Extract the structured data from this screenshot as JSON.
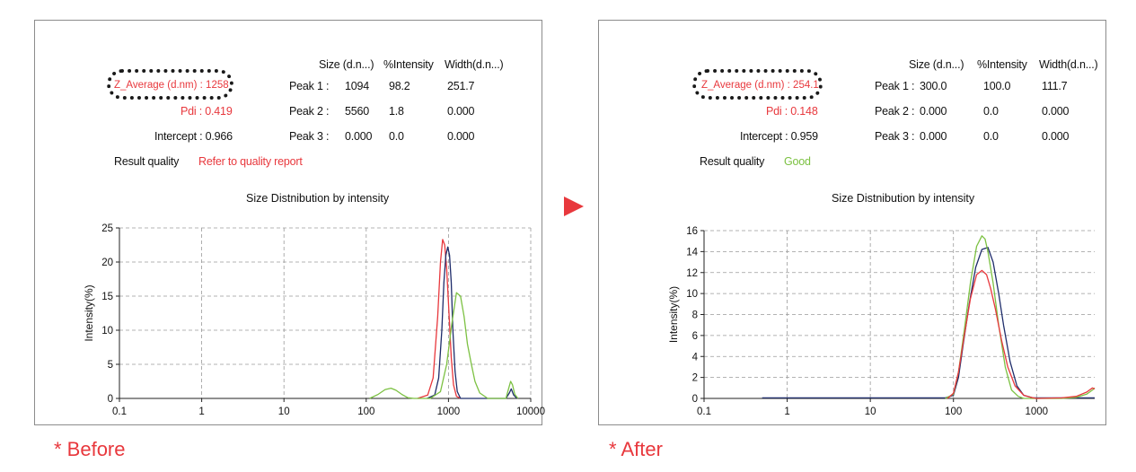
{
  "panels": [
    {
      "columns": {
        "size": "Size (d.n...)",
        "intensity": "%Intensity",
        "width": "Width(d.n...)"
      },
      "peaks": [
        {
          "label": "Peak 1 :",
          "size": "1094",
          "intensity": "98.2",
          "width": "251.7"
        },
        {
          "label": "Peak 2 :",
          "size": "5560",
          "intensity": "1.8",
          "width": "0.000"
        },
        {
          "label": "Peak 3 :",
          "size": "0.000",
          "intensity": "0.0",
          "width": "0.000"
        }
      ],
      "z_average": "Z_Average (d.nm) : 1258",
      "pdi": "Pdi : 0.419",
      "intercept": "Intercept : 0.966",
      "result_quality_label": "Result quality",
      "result_quality_value": "Refer to quality report",
      "caption": "* Before"
    },
    {
      "columns": {
        "size": "Size (d.n...)",
        "intensity": "%Intensity",
        "width": "Width(d.n...)"
      },
      "peaks": [
        {
          "label": "Peak 1 :",
          "size": "300.0",
          "intensity": "100.0",
          "width": "111.7"
        },
        {
          "label": "Peak 2 :",
          "size": "0.000",
          "intensity": "0.0",
          "width": "0.000"
        },
        {
          "label": "Peak 3 :",
          "size": "0.000",
          "intensity": "0.0",
          "width": "0.000"
        }
      ],
      "z_average": "Z_Average (d.nm) : 254.1",
      "pdi": "Pdi : 0.148",
      "intercept": "Intercept : 0.959",
      "result_quality_label": "Result quality",
      "result_quality_value": "Good",
      "caption": "* After"
    }
  ],
  "colors": {
    "red": "#e8383d",
    "green": "#7cc142",
    "navy": "#1f2d6b",
    "good": "#7cc142"
  },
  "chart_data": [
    {
      "type": "line",
      "title": "Size Distnibution by intensity",
      "xlabel": "",
      "ylabel": "Intensity(%)",
      "xscale": "log",
      "xlim": [
        0.1,
        10000
      ],
      "ylim": [
        0,
        25
      ],
      "xticks": [
        0.1,
        1,
        10,
        100,
        1000,
        10000
      ],
      "xtick_labels": [
        "0.1",
        "1",
        "10",
        "100",
        "1000",
        "10000"
      ],
      "yticks": [
        0,
        5,
        10,
        15,
        20,
        25
      ],
      "grid": true,
      "series": [
        {
          "color": "#e8383d",
          "x": [
            420,
            560,
            650,
            740,
            800,
            850,
            900,
            950,
            1000,
            1080,
            1150,
            1250,
            1400
          ],
          "y": [
            0,
            0.5,
            3,
            12,
            20,
            23.3,
            22.5,
            19,
            14,
            6,
            2,
            0.3,
            0
          ]
        },
        {
          "color": "#1f2d6b",
          "x": [
            550,
            680,
            760,
            830,
            880,
            930,
            980,
            1030,
            1080,
            1130,
            1200,
            1280,
            1400,
            5000,
            5500,
            5800,
            6200,
            6800
          ],
          "y": [
            0,
            0.5,
            3,
            10,
            17,
            21,
            22.2,
            21,
            17,
            10,
            4,
            1,
            0,
            0,
            0.8,
            1.4,
            0.5,
            0
          ]
        },
        {
          "color": "#7cc142",
          "x": [
            110,
            140,
            170,
            200,
            230,
            270,
            320,
            380,
            600,
            800,
            950,
            1100,
            1250,
            1400,
            1550,
            1700,
            1900,
            2100,
            2400,
            3000,
            5000,
            5400,
            5700,
            6000,
            6400,
            7000
          ],
          "y": [
            0,
            0.6,
            1.3,
            1.5,
            1.2,
            0.6,
            0.1,
            0,
            0,
            1,
            5,
            11,
            15.5,
            15,
            12,
            8,
            5,
            2.5,
            0.8,
            0,
            0,
            1.5,
            2.5,
            2,
            0.6,
            0
          ]
        }
      ]
    },
    {
      "type": "line",
      "title": "Size Distnibution by intensity",
      "xlabel": "",
      "ylabel": "Intensity(%)",
      "xscale": "log",
      "xlim": [
        0.1,
        5000
      ],
      "ylim": [
        0,
        16
      ],
      "xticks": [
        0.1,
        1,
        10,
        100,
        1000
      ],
      "xtick_labels": [
        "0.1",
        "1",
        "10",
        "100",
        "1000"
      ],
      "yticks": [
        0,
        2,
        4,
        6,
        8,
        10,
        12,
        14,
        16
      ],
      "grid": true,
      "series": [
        {
          "color": "#1f2d6b",
          "x": [
            0.5,
            80,
            100,
            115,
            130,
            155,
            185,
            220,
            260,
            300,
            350,
            400,
            480,
            580,
            700,
            900,
            1200,
            5000
          ],
          "y": [
            0.05,
            0.05,
            0.3,
            2,
            5,
            9,
            12.5,
            14.2,
            14.4,
            13,
            10,
            7,
            3.5,
            1.2,
            0.3,
            0.05,
            0.05,
            0.05
          ]
        },
        {
          "color": "#7cc142",
          "x": [
            80,
            100,
            115,
            135,
            160,
            190,
            220,
            240,
            260,
            300,
            350,
            420,
            500,
            600,
            700,
            900,
            2000,
            3000,
            4000,
            4700,
            5000
          ],
          "y": [
            0,
            0.4,
            2.5,
            6.5,
            11,
            14.5,
            15.5,
            15.2,
            14,
            11,
            7,
            3,
            0.8,
            0.2,
            0,
            0,
            0,
            0.1,
            0.4,
            0.8,
            1
          ]
        },
        {
          "color": "#e8383d",
          "x": [
            85,
            100,
            115,
            135,
            160,
            190,
            220,
            250,
            280,
            320,
            380,
            450,
            550,
            700,
            850,
            1000,
            2000,
            3000,
            4000,
            4700,
            5000
          ],
          "y": [
            0,
            0.5,
            2.5,
            6,
            9.5,
            11.8,
            12.2,
            11.8,
            10.5,
            8.5,
            5.5,
            3,
            1.2,
            0.3,
            0.1,
            0,
            0.05,
            0.2,
            0.6,
            1,
            0.9
          ]
        }
      ]
    }
  ]
}
